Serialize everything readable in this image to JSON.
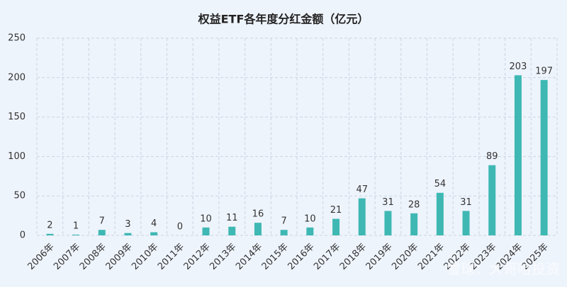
{
  "chart_data": {
    "type": "bar",
    "title": "权益ETF各年度分红金额（亿元）",
    "categories": [
      "2006年",
      "2007年",
      "2008年",
      "2009年",
      "2010年",
      "2011年",
      "2012年",
      "2013年",
      "2014年",
      "2015年",
      "2016年",
      "2017年",
      "2018年",
      "2019年",
      "2020年",
      "2021年",
      "2022年",
      "2023年",
      "2024年",
      "2025年"
    ],
    "values": [
      2,
      1,
      7,
      3,
      4,
      0,
      10,
      11,
      16,
      7,
      10,
      21,
      47,
      31,
      28,
      54,
      31,
      89,
      203,
      197
    ],
    "color": "#3fb8b4",
    "ylim": [
      0,
      250
    ],
    "yticks": [
      0,
      50,
      100,
      150,
      200,
      250
    ],
    "grid": true,
    "watermark": "雪球：大哥哈投资"
  }
}
